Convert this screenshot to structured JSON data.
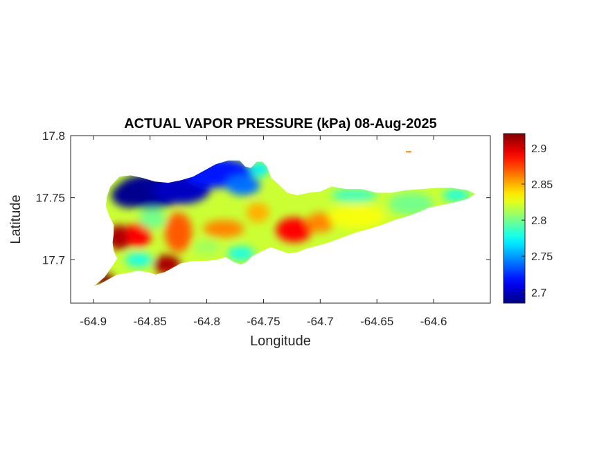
{
  "chart_data": {
    "type": "heatmap",
    "title": "ACTUAL VAPOR PRESSURE (kPa) 08-Aug-2025",
    "xlabel": "Longitude",
    "ylabel": "Latitude",
    "xlim": [
      -64.92,
      -64.55
    ],
    "ylim": [
      17.665,
      17.8
    ],
    "x_ticks": [
      -64.9,
      -64.85,
      -64.8,
      -64.75,
      -64.7,
      -64.65,
      -64.6
    ],
    "x_tick_labels": [
      "-64.9",
      "-64.85",
      "-64.8",
      "-64.75",
      "-64.7",
      "-64.65",
      "-64.6"
    ],
    "y_ticks": [
      17.7,
      17.75,
      17.8
    ],
    "y_tick_labels": [
      "17.7",
      "17.75",
      "17.8"
    ],
    "colorbar": {
      "colormap": "jet",
      "range": [
        2.685,
        2.92
      ],
      "ticks": [
        2.7,
        2.75,
        2.8,
        2.85,
        2.9
      ],
      "tick_labels": [
        "2.7",
        "2.75",
        "2.8",
        "2.85",
        "2.9"
      ]
    },
    "island_outline": [
      [
        -64.899,
        17.679
      ],
      [
        -64.89,
        17.686
      ],
      [
        -64.884,
        17.694
      ],
      [
        -64.879,
        17.701
      ],
      [
        -64.882,
        17.707
      ],
      [
        -64.883,
        17.714
      ],
      [
        -64.882,
        17.721
      ],
      [
        -64.882,
        17.728
      ],
      [
        -64.886,
        17.735
      ],
      [
        -64.889,
        17.743
      ],
      [
        -64.888,
        17.751
      ],
      [
        -64.885,
        17.759
      ],
      [
        -64.877,
        17.767
      ],
      [
        -64.867,
        17.768
      ],
      [
        -64.857,
        17.766
      ],
      [
        -64.846,
        17.763
      ],
      [
        -64.834,
        17.762
      ],
      [
        -64.823,
        17.764
      ],
      [
        -64.812,
        17.767
      ],
      [
        -64.802,
        17.772
      ],
      [
        -64.792,
        17.777
      ],
      [
        -64.781,
        17.78
      ],
      [
        -64.771,
        17.78
      ],
      [
        -64.766,
        17.775
      ],
      [
        -64.761,
        17.774
      ],
      [
        -64.756,
        17.779
      ],
      [
        -64.751,
        17.779
      ],
      [
        -64.747,
        17.775
      ],
      [
        -64.743,
        17.766
      ],
      [
        -64.737,
        17.761
      ],
      [
        -64.729,
        17.754
      ],
      [
        -64.72,
        17.752
      ],
      [
        -64.71,
        17.754
      ],
      [
        -64.7,
        17.755
      ],
      [
        -64.69,
        17.759
      ],
      [
        -64.677,
        17.757
      ],
      [
        -64.664,
        17.757
      ],
      [
        -64.65,
        17.754
      ],
      [
        -64.637,
        17.754
      ],
      [
        -64.625,
        17.756
      ],
      [
        -64.611,
        17.757
      ],
      [
        -64.596,
        17.758
      ],
      [
        -64.585,
        17.758
      ],
      [
        -64.57,
        17.756
      ],
      [
        -64.563,
        17.753
      ],
      [
        -64.57,
        17.749
      ],
      [
        -64.582,
        17.746
      ],
      [
        -64.593,
        17.744
      ],
      [
        -64.604,
        17.742
      ],
      [
        -64.614,
        17.738
      ],
      [
        -64.623,
        17.735
      ],
      [
        -64.634,
        17.732
      ],
      [
        -64.646,
        17.728
      ],
      [
        -64.656,
        17.725
      ],
      [
        -64.668,
        17.722
      ],
      [
        -64.68,
        17.718
      ],
      [
        -64.692,
        17.714
      ],
      [
        -64.703,
        17.711
      ],
      [
        -64.712,
        17.709
      ],
      [
        -64.72,
        17.706
      ],
      [
        -64.728,
        17.705
      ],
      [
        -64.734,
        17.707
      ],
      [
        -64.744,
        17.71
      ],
      [
        -64.753,
        17.706
      ],
      [
        -64.76,
        17.703
      ],
      [
        -64.765,
        17.698
      ],
      [
        -64.77,
        17.696
      ],
      [
        -64.776,
        17.698
      ],
      [
        -64.783,
        17.702
      ],
      [
        -64.791,
        17.7
      ],
      [
        -64.801,
        17.699
      ],
      [
        -64.812,
        17.699
      ],
      [
        -64.823,
        17.697
      ],
      [
        -64.831,
        17.693
      ],
      [
        -64.837,
        17.69
      ],
      [
        -64.845,
        17.688
      ],
      [
        -64.852,
        17.69
      ],
      [
        -64.861,
        17.691
      ],
      [
        -64.871,
        17.689
      ],
      [
        -64.879,
        17.688
      ],
      [
        -64.887,
        17.684
      ],
      [
        -64.895,
        17.68
      ]
    ],
    "hotspots": [
      {
        "lon": -64.85,
        "lat": 17.755,
        "value": 2.69,
        "rx": 0.03,
        "ry": 0.014
      },
      {
        "lon": -64.868,
        "lat": 17.752,
        "value": 2.688,
        "rx": 0.016,
        "ry": 0.01
      },
      {
        "lon": -64.822,
        "lat": 17.757,
        "value": 2.7,
        "rx": 0.025,
        "ry": 0.012
      },
      {
        "lon": -64.79,
        "lat": 17.77,
        "value": 2.72,
        "rx": 0.03,
        "ry": 0.012
      },
      {
        "lon": -64.768,
        "lat": 17.76,
        "value": 2.74,
        "rx": 0.015,
        "ry": 0.008
      },
      {
        "lon": -64.753,
        "lat": 17.773,
        "value": 2.77,
        "rx": 0.008,
        "ry": 0.006
      },
      {
        "lon": -64.877,
        "lat": 17.718,
        "value": 2.91,
        "rx": 0.012,
        "ry": 0.01
      },
      {
        "lon": -64.86,
        "lat": 17.72,
        "value": 2.89,
        "rx": 0.011,
        "ry": 0.01
      },
      {
        "lon": -64.835,
        "lat": 17.696,
        "value": 2.91,
        "rx": 0.012,
        "ry": 0.008
      },
      {
        "lon": -64.89,
        "lat": 17.684,
        "value": 2.92,
        "rx": 0.009,
        "ry": 0.005
      },
      {
        "lon": -64.825,
        "lat": 17.722,
        "value": 2.87,
        "rx": 0.012,
        "ry": 0.016
      },
      {
        "lon": -64.785,
        "lat": 17.725,
        "value": 2.86,
        "rx": 0.018,
        "ry": 0.007
      },
      {
        "lon": -64.723,
        "lat": 17.724,
        "value": 2.89,
        "rx": 0.016,
        "ry": 0.01
      },
      {
        "lon": -64.7,
        "lat": 17.73,
        "value": 2.86,
        "rx": 0.012,
        "ry": 0.008
      },
      {
        "lon": -64.755,
        "lat": 17.738,
        "value": 2.85,
        "rx": 0.01,
        "ry": 0.008
      },
      {
        "lon": -64.848,
        "lat": 17.733,
        "value": 2.8,
        "rx": 0.012,
        "ry": 0.008
      },
      {
        "lon": -64.86,
        "lat": 17.7,
        "value": 2.78,
        "rx": 0.012,
        "ry": 0.006
      },
      {
        "lon": -64.8,
        "lat": 17.71,
        "value": 2.81,
        "rx": 0.012,
        "ry": 0.006
      },
      {
        "lon": -64.77,
        "lat": 17.705,
        "value": 2.78,
        "rx": 0.012,
        "ry": 0.006
      },
      {
        "lon": -64.668,
        "lat": 17.735,
        "value": 2.83,
        "rx": 0.025,
        "ry": 0.01
      },
      {
        "lon": -64.62,
        "lat": 17.745,
        "value": 2.8,
        "rx": 0.02,
        "ry": 0.009
      },
      {
        "lon": -64.58,
        "lat": 17.752,
        "value": 2.78,
        "rx": 0.012,
        "ry": 0.005
      },
      {
        "lon": -64.67,
        "lat": 17.752,
        "value": 2.79,
        "rx": 0.02,
        "ry": 0.006
      }
    ],
    "offshore_patch": {
      "lon": -64.622,
      "lat": 17.787,
      "value": 2.86
    }
  }
}
